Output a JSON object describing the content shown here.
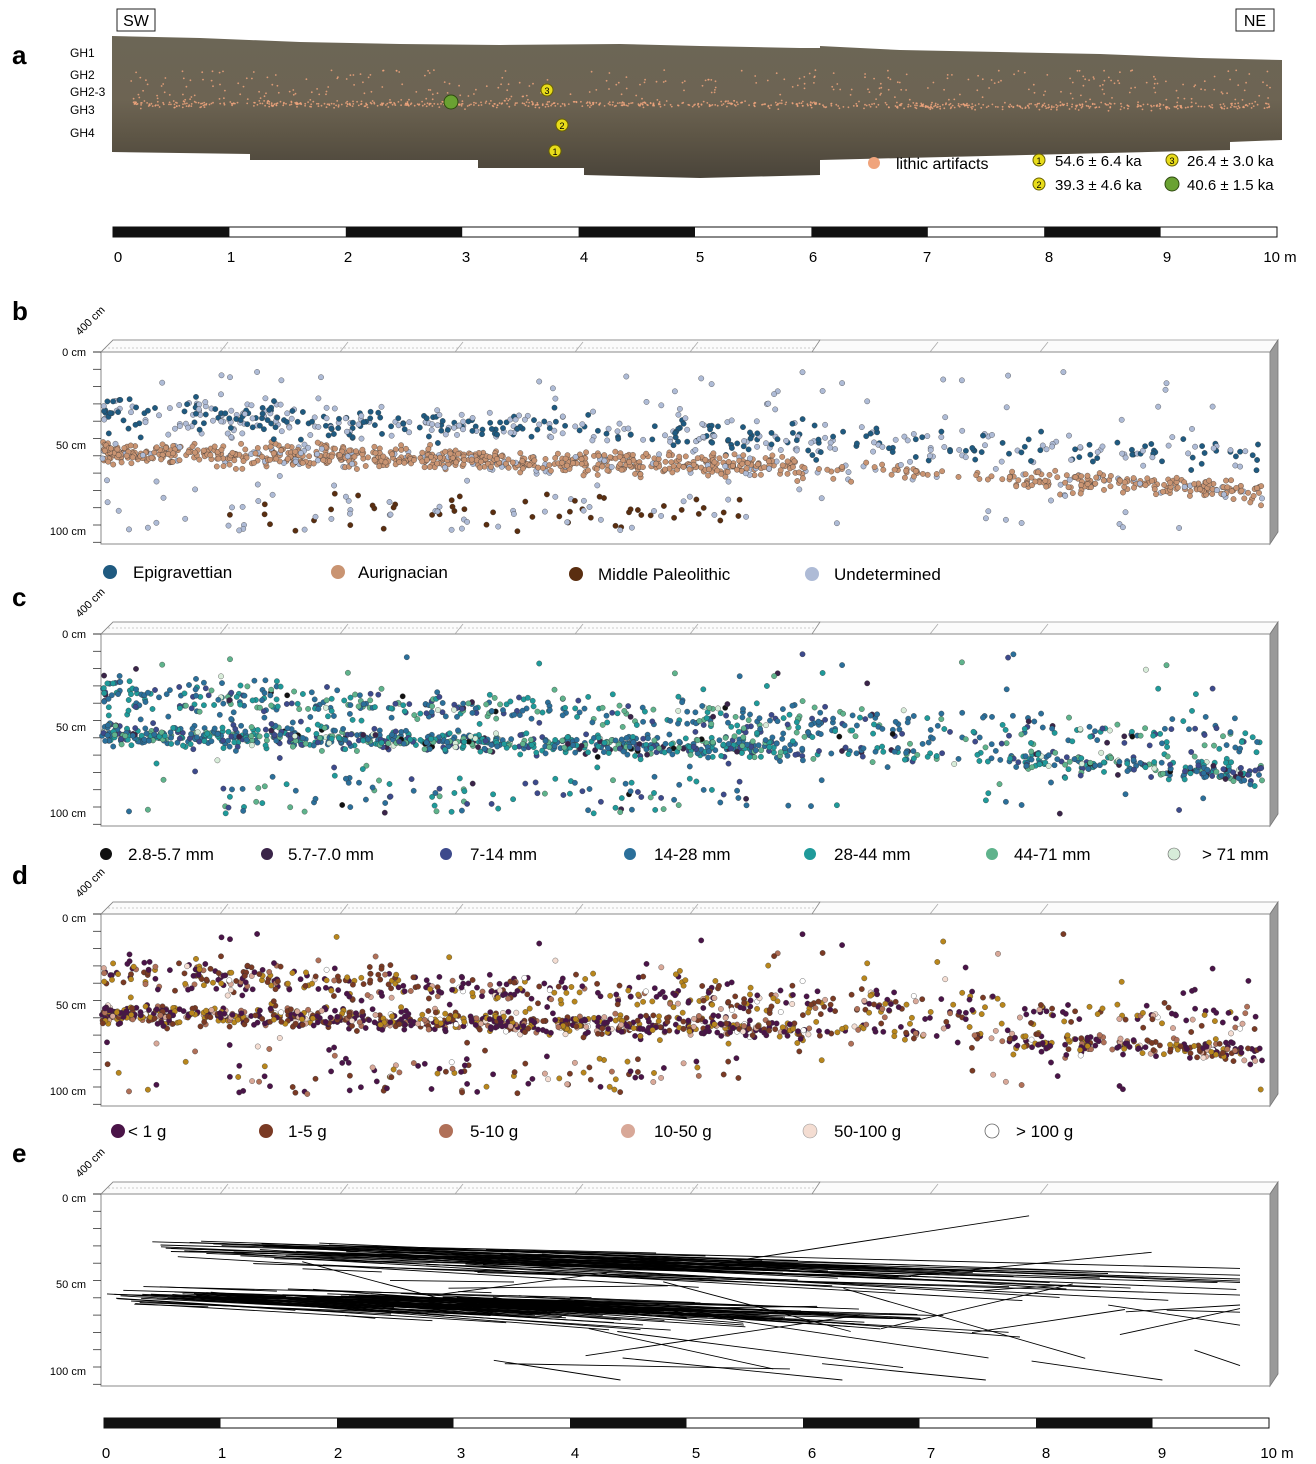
{
  "figure": {
    "panel_a": {
      "letter": "a",
      "direction_left": "SW",
      "direction_right": "NE",
      "layers": [
        "GH1",
        "GH2",
        "GH2-3",
        "GH3",
        "GH4"
      ],
      "legend_artifacts": "lithic artifacts",
      "dates": [
        {
          "marker": "1",
          "label": "54.6 ± 6.4 ka",
          "color": "#e8dc1a"
        },
        {
          "marker": "2",
          "label": "39.3 ± 4.6 ka",
          "color": "#e8dc1a"
        },
        {
          "marker": "3",
          "label": "26.4 ± 3.0 ka",
          "color": "#e8dc1a"
        },
        {
          "marker": "",
          "label": "40.6 ± 1.5 ka",
          "color": "#6aa232"
        }
      ],
      "colors": {
        "artifact": "#f0a47c",
        "section_dark": "#5a5346",
        "section_light": "#8a8272"
      }
    },
    "scale_top": {
      "ticks": [
        "0",
        "1",
        "2",
        "3",
        "4",
        "5",
        "6",
        "7",
        "8",
        "9",
        "10 m"
      ]
    },
    "scale_bottom": {
      "ticks": [
        "0",
        "1",
        "2",
        "3",
        "4",
        "5",
        "6",
        "7",
        "8",
        "9",
        "10 m"
      ]
    },
    "depth_axis": {
      "depth_label": "400 cm",
      "ticks": [
        "0 cm",
        "50 cm",
        "100 cm"
      ]
    },
    "panel_b": {
      "letter": "b",
      "legend": [
        {
          "label": "Epigravettian",
          "color": "#1f5a80"
        },
        {
          "label": "Aurignacian",
          "color": "#c99472"
        },
        {
          "label": "Middle Paleolithic",
          "color": "#5a2e10"
        },
        {
          "label": "Undetermined",
          "color": "#aebbd6"
        }
      ]
    },
    "panel_c": {
      "letter": "c",
      "legend": [
        {
          "label": "2.8-5.7 mm",
          "color": "#111111"
        },
        {
          "label": "5.7-7.0 mm",
          "color": "#3a2449"
        },
        {
          "label": "7-14 mm",
          "color": "#3d4a8c"
        },
        {
          "label": "14-28 mm",
          "color": "#2b6f9a"
        },
        {
          "label": "28-44 mm",
          "color": "#1f9a9a"
        },
        {
          "label": "44-71 mm",
          "color": "#5fb38c"
        },
        {
          "label": "> 71 mm",
          "color": "#d7ecd9"
        }
      ]
    },
    "panel_d": {
      "letter": "d",
      "legend": [
        {
          "label": "< 1 g",
          "color": "#4a1448"
        },
        {
          "label": "1-5 g",
          "color": "#7a3a24"
        },
        {
          "label": "5-10 g",
          "color": "#b07058"
        },
        {
          "label": "10-50 g",
          "color": "#d8a898"
        },
        {
          "label": "50-100 g",
          "color": "#f4ddd2"
        },
        {
          "label": "> 100 g",
          "color": "#ffffff"
        }
      ],
      "colors": {
        "gold": "#b8861c"
      }
    },
    "panel_e": {
      "letter": "e"
    }
  }
}
